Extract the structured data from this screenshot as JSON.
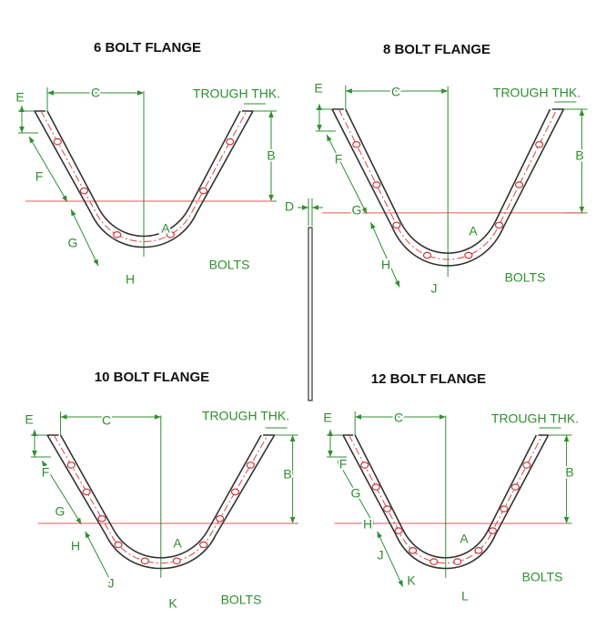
{
  "panels": [
    {
      "title": "6 BOLT FLANGE",
      "labels": [
        "E",
        "C",
        "TROUGH THK.",
        "B",
        "F",
        "A",
        "G",
        "H",
        "BOLTS"
      ]
    },
    {
      "title": "8 BOLT FLANGE",
      "labels": [
        "E",
        "C",
        "TROUGH THK.",
        "B",
        "F",
        "G",
        "A",
        "H",
        "J",
        "BOLTS"
      ]
    },
    {
      "title": "10 BOLT FLANGE",
      "labels": [
        "E",
        "C",
        "TROUGH THK.",
        "B",
        "F",
        "G",
        "A",
        "H",
        "J",
        "K",
        "BOLTS"
      ]
    },
    {
      "title": "12 BOLT FLANGE",
      "labels": [
        "E",
        "C",
        "TROUGH THK.",
        "B",
        "F",
        "G",
        "H",
        "A",
        "J",
        "K",
        "L",
        "BOLTS"
      ]
    }
  ],
  "side_view": {
    "label": "D"
  }
}
